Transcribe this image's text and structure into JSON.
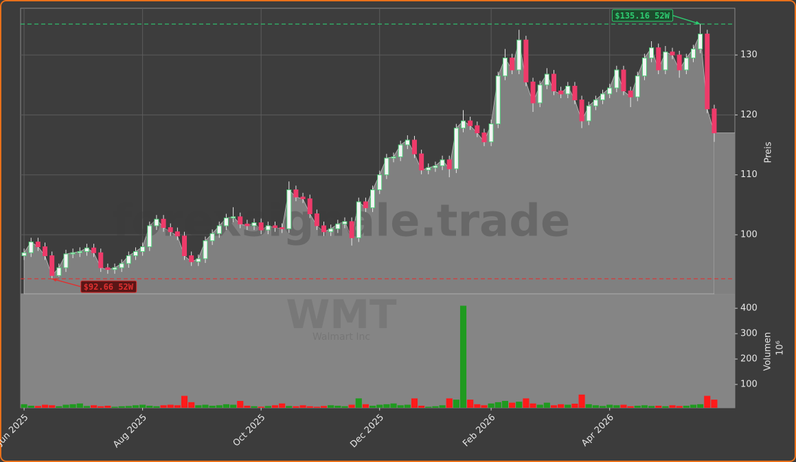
{
  "chart_data": {
    "type": "candlestick",
    "watermark": "forexsignale.trade",
    "symbol": "WMT",
    "company": "Walmart Inc",
    "categories": [
      "Jun 2025",
      null,
      null,
      null,
      null,
      null,
      null,
      null,
      null,
      null,
      null,
      null,
      null,
      null,
      null,
      null,
      null,
      "Aug 2025",
      null,
      null,
      null,
      null,
      null,
      null,
      null,
      null,
      null,
      null,
      null,
      null,
      null,
      null,
      null,
      null,
      "Oct 2025",
      null,
      null,
      null,
      null,
      null,
      null,
      null,
      null,
      null,
      null,
      null,
      null,
      null,
      null,
      null,
      null,
      "Dec 2025",
      null,
      null,
      null,
      null,
      null,
      null,
      null,
      null,
      null,
      null,
      null,
      null,
      null,
      null,
      null,
      "Feb 2026",
      null,
      null,
      null,
      null,
      null,
      null,
      null,
      null,
      null,
      null,
      null,
      null,
      null,
      null,
      null,
      null,
      "Apr 2026",
      null,
      null,
      null,
      null,
      null,
      null,
      null,
      null,
      null,
      null,
      null,
      null,
      null,
      null,
      null
    ],
    "open": [
      96.5,
      97.0,
      98.8,
      98.0,
      96.5,
      93.2,
      94.5,
      96.8,
      97.0,
      97.2,
      97.8,
      97.0,
      94.5,
      94.2,
      94.5,
      95.2,
      96.5,
      97.2,
      98.0,
      101.5,
      102.6,
      101.2,
      100.5,
      99.8,
      96.5,
      95.5,
      96.0,
      99.0,
      100.2,
      101.5,
      102.8,
      103.0,
      101.8,
      101.5,
      102.0,
      100.8,
      101.5,
      101.2,
      101.0,
      107.5,
      106.3,
      106.0,
      103.5,
      101.5,
      100.5,
      101.0,
      101.8,
      102.2,
      99.5,
      105.5,
      104.5,
      107.5,
      110.0,
      112.8,
      113.0,
      115.0,
      115.8,
      113.5,
      110.8,
      111.2,
      111.5,
      112.5,
      111.0,
      117.8,
      119.0,
      118.2,
      117.0,
      115.5,
      118.5,
      126.5,
      129.5,
      127.5,
      132.5,
      125.5,
      122.0,
      125.0,
      126.8,
      124.0,
      123.5,
      124.8,
      122.5,
      119.0,
      121.5,
      122.5,
      123.5,
      124.5,
      127.5,
      124.0,
      123.0,
      126.5,
      129.5,
      131.2,
      127.5,
      130.5,
      130.0,
      127.5,
      129.5,
      131.0,
      133.5,
      121.0
    ],
    "high": [
      97.7,
      99.5,
      99.5,
      98.7,
      97.2,
      95.2,
      97.5,
      97.7,
      97.9,
      98.5,
      98.5,
      97.7,
      95.2,
      95.2,
      95.9,
      97.2,
      97.9,
      98.7,
      102.2,
      103.3,
      103.3,
      101.9,
      101.2,
      100.5,
      97.2,
      96.7,
      99.7,
      100.9,
      102.2,
      103.5,
      104.6,
      103.7,
      102.5,
      102.7,
      102.7,
      102.2,
      102.2,
      101.9,
      108.9,
      108.2,
      107.0,
      106.7,
      104.2,
      102.2,
      101.7,
      102.5,
      102.9,
      102.9,
      106.2,
      106.2,
      108.2,
      110.7,
      113.5,
      113.7,
      115.7,
      116.6,
      116.5,
      114.2,
      111.9,
      112.2,
      113.2,
      113.2,
      118.5,
      120.8,
      119.7,
      118.9,
      117.7,
      119.2,
      127.2,
      131.0,
      130.2,
      134.2,
      133.2,
      126.2,
      125.7,
      127.8,
      127.5,
      124.7,
      125.5,
      125.5,
      123.2,
      122.2,
      123.2,
      124.2,
      125.2,
      128.2,
      128.2,
      124.7,
      127.2,
      130.2,
      132.3,
      131.9,
      131.5,
      131.2,
      130.7,
      130.2,
      131.7,
      135.16,
      134.2,
      121.7
    ],
    "low": [
      95.8,
      96.3,
      97.3,
      95.8,
      92.66,
      93.0,
      93.8,
      96.1,
      96.3,
      96.5,
      96.3,
      93.8,
      93.5,
      93.5,
      93.8,
      94.5,
      95.8,
      96.5,
      97.3,
      100.8,
      100.5,
      99.8,
      99.1,
      95.8,
      94.8,
      94.8,
      95.3,
      98.3,
      99.5,
      100.8,
      102.1,
      101.1,
      100.8,
      100.8,
      100.1,
      100.1,
      100.5,
      100.3,
      100.3,
      105.6,
      105.3,
      102.8,
      100.8,
      99.8,
      99.8,
      100.3,
      101.1,
      98.2,
      98.8,
      103.8,
      103.8,
      106.8,
      109.3,
      112.1,
      112.3,
      114.3,
      112.8,
      110.1,
      110.1,
      110.5,
      110.8,
      109.6,
      110.3,
      117.1,
      117.5,
      116.3,
      114.8,
      114.8,
      117.8,
      125.8,
      126.8,
      126.8,
      124.8,
      120.5,
      121.3,
      124.3,
      123.3,
      122.8,
      122.8,
      121.8,
      117.8,
      118.3,
      120.8,
      121.8,
      122.8,
      123.8,
      123.3,
      121.3,
      122.3,
      125.8,
      128.8,
      126.8,
      126.8,
      129.3,
      126.2,
      126.8,
      128.8,
      130.3,
      120.3,
      115.5
    ],
    "close": [
      97.0,
      98.8,
      98.0,
      96.5,
      93.2,
      94.5,
      96.8,
      97.0,
      97.2,
      97.8,
      97.0,
      94.5,
      94.2,
      94.5,
      95.2,
      96.5,
      97.2,
      98.0,
      101.5,
      102.6,
      101.2,
      100.5,
      99.8,
      96.5,
      95.5,
      96.0,
      99.0,
      100.2,
      101.5,
      102.8,
      103.0,
      101.8,
      101.5,
      102.0,
      100.8,
      101.5,
      101.2,
      101.0,
      107.5,
      106.3,
      106.0,
      103.5,
      101.5,
      100.5,
      101.0,
      101.8,
      102.2,
      99.5,
      105.5,
      104.5,
      107.5,
      110.0,
      112.8,
      113.0,
      115.0,
      115.8,
      113.5,
      110.8,
      111.2,
      111.5,
      112.5,
      111.0,
      117.8,
      119.0,
      118.2,
      117.0,
      115.5,
      118.5,
      126.5,
      129.5,
      127.5,
      132.5,
      125.5,
      122.0,
      125.0,
      126.8,
      124.0,
      123.5,
      124.8,
      122.5,
      119.0,
      121.5,
      122.5,
      123.5,
      124.5,
      127.5,
      124.0,
      123.0,
      126.5,
      129.5,
      131.2,
      127.5,
      130.5,
      130.0,
      127.5,
      129.5,
      131.0,
      133.5,
      121.0,
      117.0
    ],
    "volume": [
      22,
      16,
      15,
      20,
      18,
      14,
      20,
      22,
      25,
      15,
      18,
      14,
      16,
      12,
      14,
      15,
      18,
      20,
      16,
      14,
      18,
      20,
      18,
      55,
      30,
      18,
      20,
      16,
      18,
      22,
      20,
      35,
      16,
      14,
      12,
      15,
      18,
      25,
      15,
      14,
      18,
      14,
      12,
      15,
      18,
      16,
      14,
      20,
      45,
      22,
      16,
      20,
      22,
      25,
      18,
      20,
      45,
      16,
      12,
      14,
      18,
      45,
      40,
      410,
      40,
      22,
      18,
      25,
      30,
      35,
      28,
      32,
      45,
      25,
      20,
      28,
      18,
      22,
      20,
      24,
      60,
      22,
      18,
      15,
      20,
      18,
      20,
      14,
      16,
      18,
      15,
      16,
      14,
      18,
      15,
      16,
      20,
      22,
      55,
      40
    ],
    "ylim": [
      90.15,
      137.8
    ],
    "yticks": [
      100,
      110,
      120,
      130
    ],
    "ylabel": "Preis",
    "y2lim": [
      8,
      457
    ],
    "y2ticks": [
      100,
      200,
      300,
      400
    ],
    "y2label": "Volumen",
    "y2scale": "10⁶",
    "annotations": [
      {
        "value": 135.16,
        "label": "$135.16 52W",
        "color": "#2ecc71"
      },
      {
        "value": 92.66,
        "label": "$92.66 52W",
        "color": "#e03030"
      }
    ],
    "up_color": "#4fd17a",
    "down_color": "#ee3b6a",
    "volume_up_color": "#1f9a1f",
    "volume_down_color": "#ff1a1a",
    "area_color": "#808080",
    "grid": true
  }
}
